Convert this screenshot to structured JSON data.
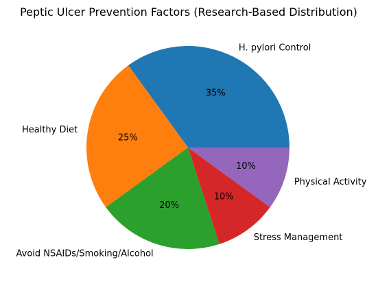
{
  "chart_data": {
    "type": "pie",
    "title": "Peptic Ulcer Prevention Factors (Research-Based Distribution)",
    "slices": [
      {
        "label": "H. pylori Control",
        "value": 35,
        "pct_label": "35%",
        "color": "#1f77b4"
      },
      {
        "label": "Healthy Diet",
        "value": 25,
        "pct_label": "25%",
        "color": "#ff7f0e"
      },
      {
        "label": "Avoid NSAIDs/Smoking/Alcohol",
        "value": 20,
        "pct_label": "20%",
        "color": "#2ca02c"
      },
      {
        "label": "Stress Management",
        "value": 10,
        "pct_label": "10%",
        "color": "#d62728"
      },
      {
        "label": "Physical Activity",
        "value": 10,
        "pct_label": "10%",
        "color": "#9467bd"
      }
    ],
    "start_angle_deg": 0,
    "direction": "counterclockwise",
    "legend": "none"
  }
}
